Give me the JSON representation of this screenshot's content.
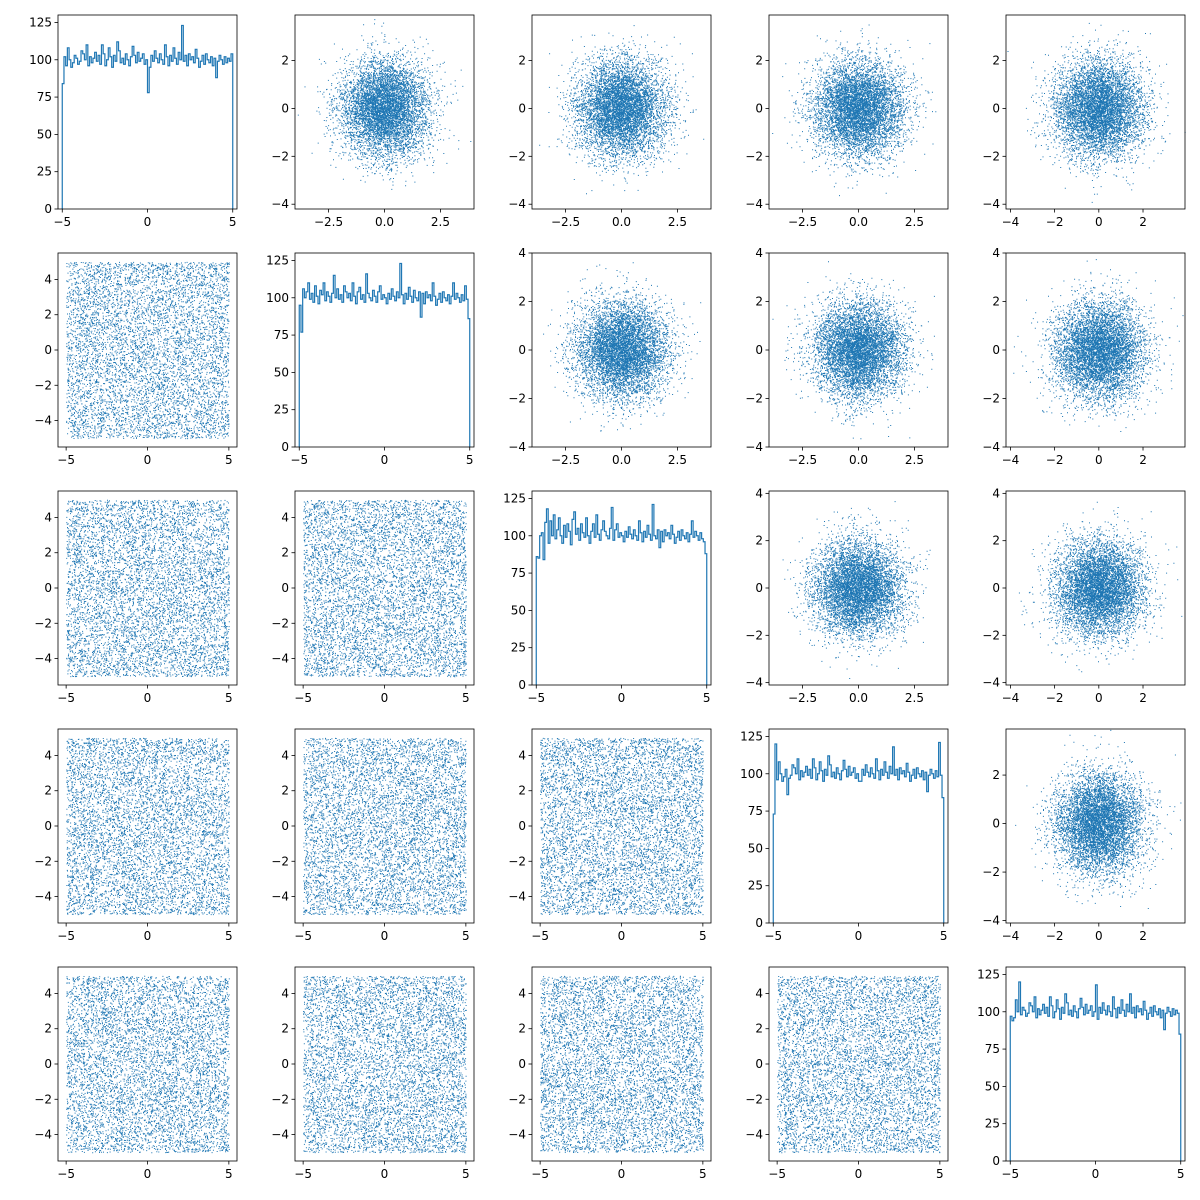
{
  "chart_data": {
    "type": "scatter-matrix",
    "grid": false,
    "legend": "none",
    "nrows": 5,
    "ncols": 5,
    "n_samples": 10000,
    "colors": {
      "series": "#1f77b4",
      "axes": "#000000",
      "background": "#ffffff"
    },
    "histograms": [
      {
        "row": 0,
        "col": 0,
        "distribution": "uniform",
        "xlim": [
          -5.25,
          5.25
        ],
        "ylim": [
          0,
          130
        ],
        "xticks": [
          -5,
          0,
          5
        ],
        "yticks": [
          0,
          25,
          50,
          75,
          100,
          125
        ],
        "bin_range": [
          -5,
          5
        ],
        "counts": [
          84,
          102,
          96,
          108,
          100,
          95,
          98,
          103,
          101,
          97,
          99,
          106,
          104,
          100,
          110,
          96,
          102,
          98,
          101,
          105,
          99,
          103,
          97,
          110,
          104,
          96,
          100,
          108,
          102,
          95,
          103,
          99,
          112,
          106,
          98,
          101,
          97,
          104,
          100,
          96,
          102,
          109,
          103,
          98,
          105,
          99,
          101,
          104,
          97,
          100,
          78,
          95,
          103,
          99,
          106,
          101,
          98,
          104,
          100,
          97,
          110,
          102,
          96,
          103,
          99,
          108,
          101,
          97,
          105,
          100,
          123,
          99,
          103,
          96,
          104,
          100,
          102,
          98,
          107,
          101,
          95,
          99,
          103,
          97,
          104,
          100,
          98,
          102,
          96,
          101,
          88,
          99,
          103,
          100,
          97,
          102,
          98,
          101,
          99,
          104
        ]
      },
      {
        "row": 1,
        "col": 1,
        "distribution": "uniform",
        "xlim": [
          -5.25,
          5.25
        ],
        "ylim": [
          0,
          130
        ],
        "xticks": [
          -5,
          0,
          5
        ],
        "yticks": [
          0,
          25,
          50,
          75,
          100,
          125
        ],
        "bin_range": [
          -5,
          5
        ],
        "counts": [
          95,
          77,
          106,
          100,
          104,
          110,
          99,
          103,
          97,
          108,
          101,
          96,
          105,
          102,
          110,
          98,
          104,
          101,
          97,
          103,
          115,
          100,
          106,
          99,
          102,
          97,
          108,
          104,
          100,
          103,
          98,
          110,
          101,
          96,
          104,
          107,
          99,
          102,
          97,
          116,
          103,
          100,
          98,
          105,
          101,
          97,
          104,
          108,
          99,
          102,
          100,
          96,
          103,
          99,
          106,
          101,
          98,
          104,
          100,
          123,
          102,
          96,
          103,
          99,
          107,
          101,
          97,
          105,
          100,
          98,
          104,
          87,
          103,
          96,
          104,
          100,
          102,
          98,
          110,
          101,
          95,
          99,
          103,
          97,
          104,
          100,
          98,
          102,
          96,
          101,
          110,
          99,
          103,
          100,
          97,
          102,
          98,
          108,
          99,
          86
        ]
      },
      {
        "row": 2,
        "col": 2,
        "distribution": "uniform",
        "xlim": [
          -5.25,
          5.25
        ],
        "ylim": [
          0,
          130
        ],
        "xticks": [
          -5,
          0,
          5
        ],
        "yticks": [
          0,
          25,
          50,
          75,
          100,
          125
        ],
        "bin_range": [
          -5,
          5
        ],
        "counts": [
          86,
          85,
          100,
          102,
          84,
          109,
          118,
          95,
          110,
          100,
          114,
          98,
          104,
          112,
          100,
          95,
          107,
          99,
          108,
          103,
          94,
          111,
          116,
          101,
          105,
          97,
          108,
          102,
          99,
          112,
          100,
          95,
          103,
          108,
          99,
          114,
          101,
          97,
          104,
          110,
          103,
          100,
          98,
          105,
          119,
          97,
          104,
          108,
          99,
          102,
          100,
          96,
          103,
          99,
          106,
          101,
          98,
          104,
          100,
          97,
          110,
          102,
          96,
          103,
          99,
          107,
          101,
          97,
          121,
          100,
          98,
          104,
          92,
          103,
          96,
          104,
          100,
          102,
          98,
          107,
          101,
          95,
          99,
          103,
          97,
          104,
          100,
          98,
          102,
          96,
          101,
          110,
          99,
          103,
          100,
          97,
          102,
          98,
          96,
          88
        ]
      },
      {
        "row": 3,
        "col": 3,
        "distribution": "uniform",
        "xlim": [
          -5.25,
          5.25
        ],
        "ylim": [
          0,
          130
        ],
        "xticks": [
          -5,
          0,
          5
        ],
        "yticks": [
          0,
          25,
          50,
          75,
          100,
          125
        ],
        "bin_range": [
          -5,
          5
        ],
        "counts": [
          73,
          120,
          96,
          108,
          100,
          95,
          98,
          103,
          86,
          97,
          99,
          106,
          104,
          100,
          110,
          96,
          102,
          98,
          101,
          105,
          99,
          103,
          97,
          110,
          104,
          96,
          100,
          108,
          102,
          95,
          103,
          99,
          112,
          106,
          98,
          101,
          97,
          104,
          100,
          96,
          102,
          109,
          103,
          98,
          105,
          99,
          101,
          104,
          97,
          100,
          95,
          95,
          103,
          99,
          106,
          101,
          98,
          104,
          100,
          97,
          110,
          102,
          96,
          103,
          99,
          108,
          101,
          97,
          105,
          100,
          118,
          99,
          103,
          96,
          104,
          100,
          102,
          98,
          107,
          101,
          95,
          99,
          103,
          97,
          104,
          100,
          98,
          102,
          96,
          101,
          88,
          99,
          103,
          100,
          97,
          102,
          98,
          121,
          99,
          84
        ]
      },
      {
        "row": 4,
        "col": 4,
        "distribution": "uniform",
        "xlim": [
          -5.25,
          5.25
        ],
        "ylim": [
          0,
          130
        ],
        "xticks": [
          -5,
          0,
          5
        ],
        "yticks": [
          0,
          25,
          50,
          75,
          100,
          125
        ],
        "bin_range": [
          -5,
          5
        ],
        "counts": [
          97,
          94,
          96,
          108,
          100,
          120,
          98,
          103,
          101,
          97,
          99,
          106,
          104,
          100,
          110,
          96,
          102,
          98,
          101,
          105,
          99,
          103,
          97,
          110,
          104,
          96,
          100,
          108,
          102,
          95,
          103,
          99,
          112,
          106,
          98,
          101,
          97,
          104,
          100,
          96,
          102,
          109,
          103,
          98,
          105,
          99,
          101,
          104,
          97,
          100,
          118,
          95,
          103,
          99,
          106,
          101,
          98,
          104,
          100,
          97,
          110,
          102,
          96,
          103,
          99,
          108,
          101,
          97,
          105,
          100,
          112,
          99,
          103,
          96,
          104,
          100,
          102,
          98,
          107,
          101,
          95,
          99,
          103,
          97,
          104,
          100,
          98,
          102,
          96,
          101,
          88,
          99,
          103,
          100,
          97,
          102,
          98,
          101,
          99,
          85
        ]
      }
    ],
    "scatter_upper": {
      "description_of_distribution": "standard normal",
      "cells": [
        {
          "row": 0,
          "col": 1,
          "xlim": [
            -4,
            4
          ],
          "ylim": [
            -4.2,
            3.9
          ],
          "xticks": [
            -2.5,
            0.0,
            2.5
          ],
          "yticks": [
            -4,
            -2,
            0,
            2
          ]
        },
        {
          "row": 0,
          "col": 2,
          "xlim": [
            -4,
            4
          ],
          "ylim": [
            -4.2,
            3.9
          ],
          "xticks": [
            -2.5,
            0.0,
            2.5
          ],
          "yticks": [
            -4,
            -2,
            0,
            2
          ]
        },
        {
          "row": 0,
          "col": 3,
          "xlim": [
            -4,
            4
          ],
          "ylim": [
            -4.2,
            3.9
          ],
          "xticks": [
            -2.5,
            0.0,
            2.5
          ],
          "yticks": [
            -4,
            -2,
            0,
            2
          ]
        },
        {
          "row": 0,
          "col": 4,
          "xlim": [
            -4.2,
            3.9
          ],
          "ylim": [
            -4.2,
            3.9
          ],
          "xticks": [
            -4,
            -2,
            0,
            2
          ],
          "yticks": [
            -4,
            -2,
            0,
            2
          ]
        },
        {
          "row": 1,
          "col": 2,
          "xlim": [
            -4,
            4
          ],
          "ylim": [
            -4,
            4
          ],
          "xticks": [
            -2.5,
            0.0,
            2.5
          ],
          "yticks": [
            -4,
            -2,
            0,
            2,
            4
          ]
        },
        {
          "row": 1,
          "col": 3,
          "xlim": [
            -4,
            4
          ],
          "ylim": [
            -4,
            4
          ],
          "xticks": [
            -2.5,
            0.0,
            2.5
          ],
          "yticks": [
            -4,
            -2,
            0,
            2,
            4
          ]
        },
        {
          "row": 1,
          "col": 4,
          "xlim": [
            -4.2,
            3.9
          ],
          "ylim": [
            -4,
            4
          ],
          "xticks": [
            -4,
            -2,
            0,
            2
          ],
          "yticks": [
            -4,
            -2,
            0,
            2,
            4
          ]
        },
        {
          "row": 2,
          "col": 3,
          "xlim": [
            -4,
            4
          ],
          "ylim": [
            -4.1,
            4.1
          ],
          "xticks": [
            -2.5,
            0.0,
            2.5
          ],
          "yticks": [
            -4,
            -2,
            0,
            2,
            4
          ]
        },
        {
          "row": 2,
          "col": 4,
          "xlim": [
            -4.2,
            3.9
          ],
          "ylim": [
            -4.1,
            4.1
          ],
          "xticks": [
            -4,
            -2,
            0,
            2
          ],
          "yticks": [
            -4,
            -2,
            0,
            2,
            4
          ]
        },
        {
          "row": 3,
          "col": 4,
          "xlim": [
            -4.2,
            3.9
          ],
          "ylim": [
            -4.1,
            3.9
          ],
          "xticks": [
            -4,
            -2,
            0,
            2
          ],
          "yticks": [
            -4,
            -2,
            0,
            2
          ]
        }
      ]
    },
    "scatter_lower": {
      "description_of_distribution": "uniform",
      "data_range": [
        -5,
        5
      ],
      "xlim": [
        -5.5,
        5.5
      ],
      "ylim": [
        -5.5,
        5.5
      ],
      "xticks": [
        -5,
        0,
        5
      ],
      "yticks": [
        -4,
        -2,
        0,
        2,
        4
      ],
      "cells": [
        {
          "row": 1,
          "col": 0
        },
        {
          "row": 2,
          "col": 0
        },
        {
          "row": 2,
          "col": 1
        },
        {
          "row": 3,
          "col": 0
        },
        {
          "row": 3,
          "col": 1
        },
        {
          "row": 3,
          "col": 2
        },
        {
          "row": 4,
          "col": 0
        },
        {
          "row": 4,
          "col": 1
        },
        {
          "row": 4,
          "col": 2
        },
        {
          "row": 4,
          "col": 3
        }
      ]
    }
  }
}
